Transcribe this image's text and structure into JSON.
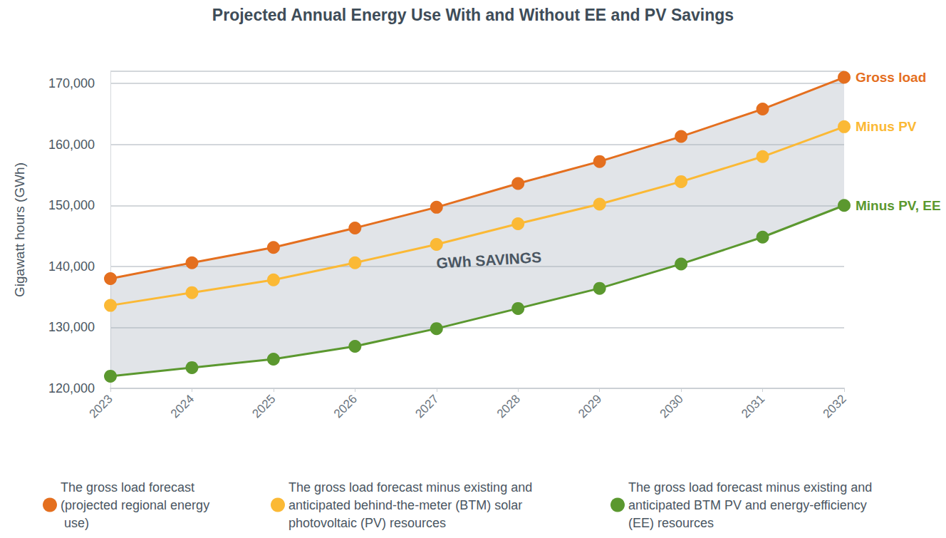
{
  "chart_data": {
    "type": "line",
    "title": "Projected Annual Energy Use With and Without EE and PV Savings",
    "y_label": "Gigawatt hours (GWh)",
    "annotation": "GWh SAVINGS",
    "categories": [
      "2023",
      "2024",
      "2025",
      "2026",
      "2027",
      "2028",
      "2029",
      "2030",
      "2031",
      "2032"
    ],
    "ylim": [
      120000,
      172000
    ],
    "yticks": [
      {
        "value": 120000,
        "label": "120,000"
      },
      {
        "value": 130000,
        "label": "130,000"
      },
      {
        "value": 140000,
        "label": "140,000"
      },
      {
        "value": 150000,
        "label": "150,000"
      },
      {
        "value": 160000,
        "label": "160,000"
      },
      {
        "value": 170000,
        "label": "170,000"
      }
    ],
    "grid": true,
    "legend": "bottom",
    "series": [
      {
        "name": "The gross load forecast (projected regional energy use)",
        "end_label": "Gross load",
        "color": "#e46f1f",
        "marker": "circle",
        "values": [
          138000,
          140600,
          143100,
          146300,
          149700,
          153600,
          157200,
          161300,
          165800,
          171000
        ]
      },
      {
        "name": "The gross load forecast minus existing and anticipated behind-the-meter (BTM) solar photovoltaic (PV) resources",
        "end_label": "Minus PV",
        "color": "#fbb935",
        "marker": "circle",
        "values": [
          133600,
          135700,
          137800,
          140600,
          143600,
          147000,
          150200,
          153900,
          158000,
          162900
        ]
      },
      {
        "name": "The gross load forecast minus existing and anticipated BTM PV and energy-efficiency (EE) resources",
        "end_label": "Minus PV, EE",
        "color": "#5b982f",
        "marker": "circle",
        "values": [
          122000,
          123400,
          124800,
          126900,
          129800,
          133100,
          136400,
          140400,
          144800,
          150000
        ]
      }
    ]
  }
}
